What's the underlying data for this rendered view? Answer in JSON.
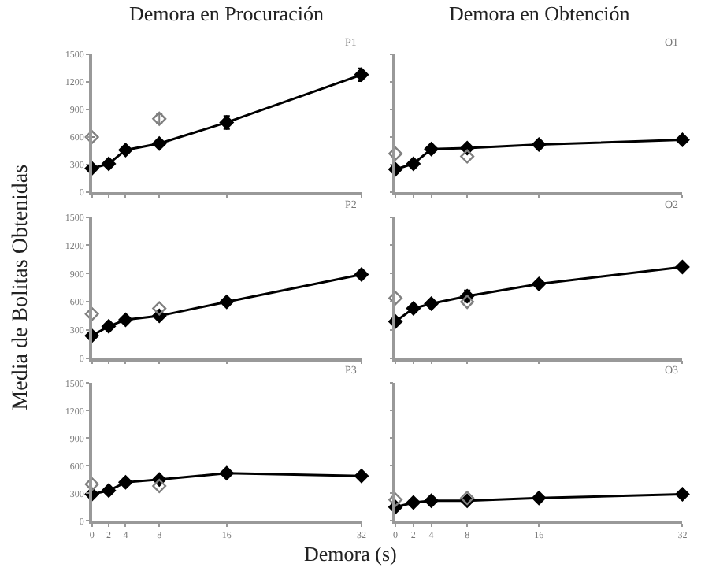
{
  "chart_data": [
    {
      "type": "line",
      "title": "Demora en Procuración",
      "annotations": [
        "P1"
      ],
      "x": [
        0,
        2,
        4,
        8,
        16,
        32
      ],
      "xlim": [
        0,
        32
      ],
      "xticks": [
        0,
        2,
        4,
        8,
        16,
        32
      ],
      "ylim": [
        0,
        1500
      ],
      "yticks": [
        0,
        300,
        600,
        900,
        1200,
        1500
      ],
      "tick_labels": "y",
      "marker": "diamond",
      "line_style": "solid",
      "series": [
        {
          "color": "#000000",
          "values": [
            260,
            310,
            460,
            530,
            760,
            1280
          ],
          "errors": [
            null,
            null,
            null,
            null,
            70,
            70
          ]
        },
        {
          "type": "scatter",
          "color": "#808080",
          "values": [
            600,
            null,
            null,
            800,
            null,
            null
          ],
          "errors": [
            null,
            null,
            null,
            50,
            null,
            null
          ]
        }
      ]
    },
    {
      "type": "line",
      "title": "Demora en Obtención",
      "annotations": [
        "O1"
      ],
      "x": [
        0,
        2,
        4,
        8,
        16,
        32
      ],
      "xlim": [
        0,
        32
      ],
      "xticks": [
        0,
        2,
        4,
        8,
        16,
        32
      ],
      "ylim": [
        0,
        1500
      ],
      "yticks": [
        0,
        300,
        600,
        900,
        1200,
        1500
      ],
      "tick_labels": false,
      "marker": "diamond",
      "line_style": "solid",
      "series": [
        {
          "color": "#000000",
          "values": [
            250,
            310,
            470,
            480,
            520,
            570
          ]
        },
        {
          "type": "scatter",
          "color": "#808080",
          "values": [
            420,
            null,
            null,
            390,
            null,
            null
          ]
        }
      ]
    },
    {
      "type": "line",
      "ylabel": "Media de Bolitas Obtenidas",
      "annotations": [
        "P2"
      ],
      "x": [
        0,
        2,
        4,
        8,
        16,
        32
      ],
      "xlim": [
        0,
        32
      ],
      "xticks": [
        0,
        2,
        4,
        8,
        16,
        32
      ],
      "ylim": [
        0,
        1500
      ],
      "yticks": [
        0,
        300,
        600,
        900,
        1200,
        1500
      ],
      "tick_labels": "y",
      "marker": "diamond",
      "line_style": "solid",
      "series": [
        {
          "color": "#000000",
          "values": [
            240,
            340,
            410,
            450,
            600,
            890
          ]
        },
        {
          "type": "scatter",
          "color": "#808080",
          "values": [
            470,
            null,
            null,
            530,
            null,
            null
          ]
        }
      ]
    },
    {
      "type": "line",
      "annotations": [
        "O2"
      ],
      "x": [
        0,
        2,
        4,
        8,
        16,
        32
      ],
      "xlim": [
        0,
        32
      ],
      "xticks": [
        0,
        2,
        4,
        8,
        16,
        32
      ],
      "ylim": [
        0,
        1500
      ],
      "yticks": [
        0,
        300,
        600,
        900,
        1200,
        1500
      ],
      "tick_labels": false,
      "marker": "diamond",
      "line_style": "solid",
      "series": [
        {
          "color": "#000000",
          "values": [
            390,
            530,
            580,
            660,
            790,
            970
          ],
          "errors": [
            null,
            null,
            null,
            60,
            null,
            null
          ]
        },
        {
          "type": "scatter",
          "color": "#808080",
          "values": [
            640,
            null,
            null,
            600,
            null,
            null
          ]
        }
      ]
    },
    {
      "type": "line",
      "xlabel": "Demora (s)",
      "annotations": [
        "P3"
      ],
      "x": [
        0,
        2,
        4,
        8,
        16,
        32
      ],
      "xlim": [
        0,
        32
      ],
      "xticks": [
        0,
        2,
        4,
        8,
        16,
        32
      ],
      "ylim": [
        0,
        1500
      ],
      "yticks": [
        0,
        300,
        600,
        900,
        1200,
        1500
      ],
      "marker": "diamond",
      "line_style": "solid",
      "series": [
        {
          "color": "#000000",
          "values": [
            290,
            330,
            420,
            450,
            520,
            490
          ]
        },
        {
          "type": "scatter",
          "color": "#808080",
          "values": [
            400,
            null,
            null,
            380,
            null,
            null
          ]
        }
      ]
    },
    {
      "type": "line",
      "annotations": [
        "O3"
      ],
      "x": [
        0,
        2,
        4,
        8,
        16,
        32
      ],
      "xlim": [
        0,
        32
      ],
      "xticks": [
        0,
        2,
        4,
        8,
        16,
        32
      ],
      "ylim": [
        0,
        1500
      ],
      "yticks": [
        0,
        300,
        600,
        900,
        1200,
        1500
      ],
      "tick_labels": "x",
      "marker": "diamond",
      "line_style": "solid",
      "series": [
        {
          "color": "#000000",
          "values": [
            150,
            200,
            220,
            220,
            250,
            290
          ]
        },
        {
          "type": "scatter",
          "color": "#808080",
          "values": [
            230,
            null,
            null,
            250,
            null,
            null
          ]
        }
      ]
    }
  ]
}
